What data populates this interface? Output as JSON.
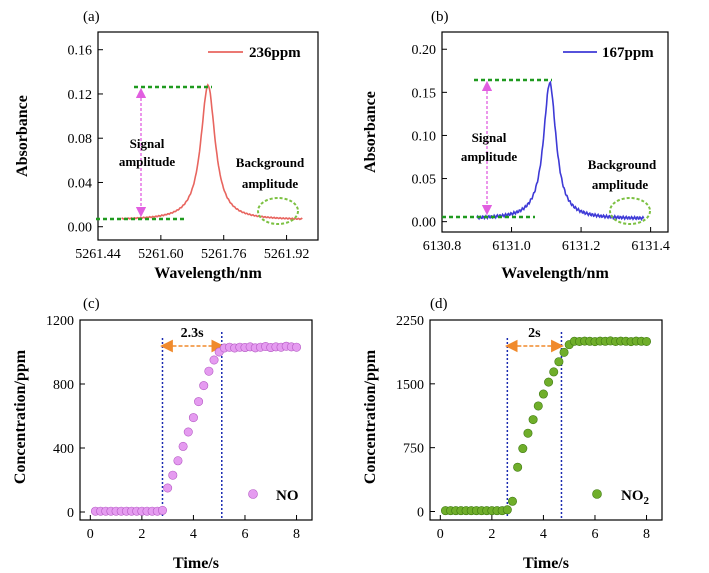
{
  "colors": {
    "panel_a_line": "#e8655f",
    "panel_b_line": "#3e3ad6",
    "panel_c_marker": "#e59bf0",
    "panel_d_marker": "#6fae2a",
    "dashed_green": "#1f9a1f",
    "arrow_magenta": "#e15ee0",
    "arrow_orange": "#f08a2c",
    "vline_blue": "#1b2bb0"
  },
  "chart_data": [
    {
      "panel": "(a)",
      "type": "line",
      "xlabel": "Wavelength/nm",
      "ylabel": "Absorbance",
      "xlim": [
        5261.44,
        5262.0
      ],
      "ylim": [
        -0.012,
        0.176
      ],
      "xticks": [
        "5261.44",
        "5261.60",
        "5261.76",
        "5261.92"
      ],
      "xtick_values": [
        5261.44,
        5261.6,
        5261.76,
        5261.92
      ],
      "yticks": [
        "0.00",
        "0.04",
        "0.08",
        "0.12",
        "0.16"
      ],
      "ytick_values": [
        0.0,
        0.04,
        0.08,
        0.12,
        0.16
      ],
      "series": [
        {
          "name": "236ppm",
          "peak_center": 5261.72,
          "peak_height": 0.122,
          "peak_width": 0.022,
          "baseline": 0.006,
          "x_range": [
            5261.5,
            5261.96
          ]
        }
      ],
      "annotations": {
        "signal": [
          "Signal",
          "amplitude"
        ],
        "background": [
          "Background",
          "amplitude"
        ]
      },
      "legend": "top-right"
    },
    {
      "panel": "(b)",
      "type": "line",
      "xlabel": "Wavelength/nm",
      "ylabel": "Absorbance",
      "xlim": [
        6130.8,
        6131.45
      ],
      "ylim": [
        -0.012,
        0.22
      ],
      "xticks": [
        "6130.8",
        "6131.0",
        "6131.2",
        "6131.4"
      ],
      "xtick_values": [
        6130.8,
        6131.0,
        6131.2,
        6131.4
      ],
      "yticks": [
        "0.00",
        "0.05",
        "0.10",
        "0.15",
        "0.20"
      ],
      "ytick_values": [
        0.0,
        0.05,
        0.1,
        0.15,
        0.2
      ],
      "series": [
        {
          "name": "167ppm",
          "peak_center": 6131.11,
          "peak_height": 0.158,
          "peak_width": 0.022,
          "baseline": 0.003,
          "x_range": [
            6130.9,
            6131.38
          ]
        }
      ],
      "annotations": {
        "signal": [
          "Signal",
          "amplitude"
        ],
        "background": [
          "Background",
          "amplitude"
        ]
      },
      "legend": "top-right"
    },
    {
      "panel": "(c)",
      "type": "scatter",
      "xlabel": "Time/s",
      "ylabel": "Concentration/ppm",
      "xlim": [
        -0.4,
        8.6
      ],
      "ylim": [
        -50,
        1200
      ],
      "xticks": [
        "0",
        "2",
        "4",
        "6",
        "8"
      ],
      "xtick_values": [
        0,
        2,
        4,
        6,
        8
      ],
      "yticks": [
        "0",
        "400",
        "800",
        "1200"
      ],
      "ytick_values": [
        0,
        400,
        800,
        1200
      ],
      "series": [
        {
          "name": "NO",
          "x": [
            0.2,
            0.4,
            0.6,
            0.8,
            1.0,
            1.2,
            1.4,
            1.6,
            1.8,
            2.0,
            2.2,
            2.4,
            2.6,
            2.8,
            3.0,
            3.2,
            3.4,
            3.6,
            3.8,
            4.0,
            4.2,
            4.4,
            4.6,
            4.8,
            5.0,
            5.2,
            5.4,
            5.6,
            5.8,
            6.0,
            6.2,
            6.4,
            6.6,
            6.8,
            7.0,
            7.2,
            7.4,
            7.6,
            7.8,
            8.0
          ],
          "y": [
            5,
            5,
            5,
            5,
            5,
            5,
            5,
            5,
            5,
            5,
            5,
            5,
            5,
            10,
            150,
            230,
            320,
            410,
            500,
            590,
            690,
            790,
            880,
            950,
            1000,
            1025,
            1030,
            1025,
            1030,
            1028,
            1032,
            1026,
            1030,
            1034,
            1028,
            1032,
            1030,
            1036,
            1032,
            1030
          ]
        }
      ],
      "response_time": "2.3s",
      "response_window": [
        2.8,
        5.1
      ],
      "legend": "lower-right"
    },
    {
      "panel": "(d)",
      "type": "scatter",
      "xlabel": "Time/s",
      "ylabel": "Concentration/ppm",
      "xlim": [
        -0.4,
        8.6
      ],
      "ylim": [
        -100,
        2250
      ],
      "xticks": [
        "0",
        "2",
        "4",
        "6",
        "8"
      ],
      "xtick_values": [
        0,
        2,
        4,
        6,
        8
      ],
      "yticks": [
        "0",
        "750",
        "1500",
        "2250"
      ],
      "ytick_values": [
        0,
        750,
        1500,
        2250
      ],
      "series": [
        {
          "name": "NO2",
          "name_base": "NO",
          "name_sub": "2",
          "x": [
            0.2,
            0.4,
            0.6,
            0.8,
            1.0,
            1.2,
            1.4,
            1.6,
            1.8,
            2.0,
            2.2,
            2.4,
            2.6,
            2.8,
            3.0,
            3.2,
            3.4,
            3.6,
            3.8,
            4.0,
            4.2,
            4.4,
            4.6,
            4.8,
            5.0,
            5.2,
            5.4,
            5.6,
            5.8,
            6.0,
            6.2,
            6.4,
            6.6,
            6.8,
            7.0,
            7.2,
            7.4,
            7.6,
            7.8,
            8.0
          ],
          "y": [
            10,
            10,
            10,
            10,
            10,
            10,
            10,
            10,
            10,
            10,
            10,
            10,
            20,
            120,
            520,
            740,
            920,
            1080,
            1240,
            1380,
            1520,
            1640,
            1760,
            1870,
            1960,
            2000,
            1998,
            2002,
            2000,
            1996,
            2002,
            2000,
            2004,
            1998,
            2002,
            2000,
            1996,
            2002,
            2000,
            1998
          ]
        }
      ],
      "response_time": "2s",
      "response_window": [
        2.6,
        4.7
      ],
      "legend": "lower-right"
    }
  ]
}
